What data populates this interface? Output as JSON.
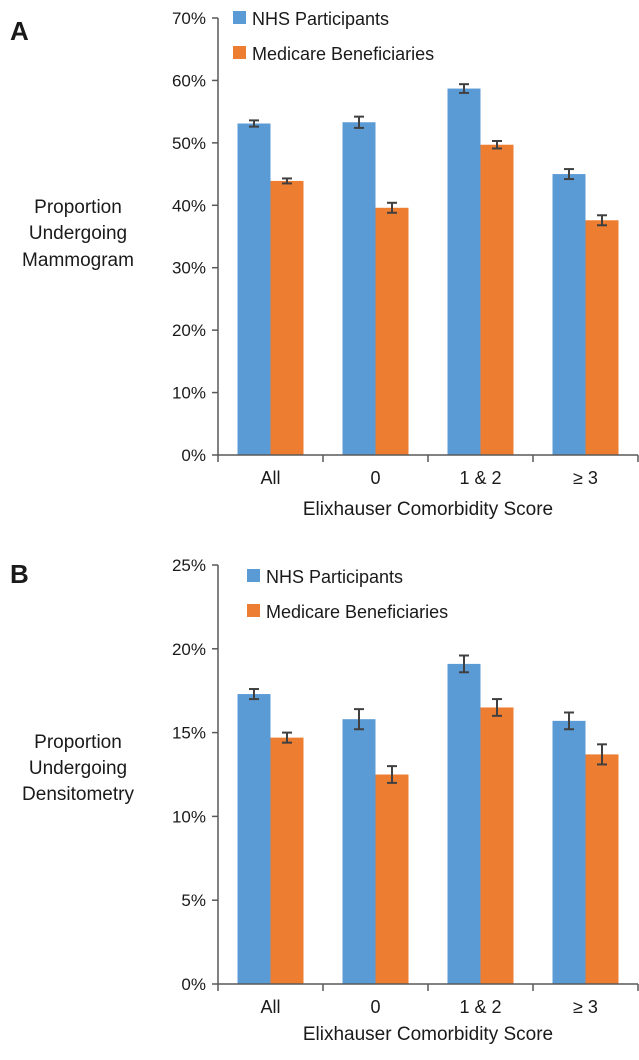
{
  "colors": {
    "nhs": "#5B9BD5",
    "medicare": "#ED7D31",
    "axis": "#595959",
    "error_bar": "#404040",
    "text": "#1a1a1a"
  },
  "chart_data": [
    {
      "type": "bar",
      "panel_label": "A",
      "title": "",
      "xlabel": "Elixhauser Comorbidity Score",
      "ylabel": [
        "Proportion",
        "Undergoing",
        "Mammogram"
      ],
      "categories": [
        "All",
        "0",
        "1 & 2",
        "≥ 3"
      ],
      "ylim": [
        0,
        70
      ],
      "yticks": [
        0,
        10,
        20,
        30,
        40,
        50,
        60,
        70
      ],
      "ytick_labels": [
        "0%",
        "10%",
        "20%",
        "30%",
        "40%",
        "50%",
        "60%",
        "70%"
      ],
      "grid": false,
      "legend_position": "top-left",
      "series": [
        {
          "name": "NHS Participants",
          "color_key": "nhs",
          "values": [
            53.1,
            53.3,
            58.7,
            45.0
          ],
          "error": [
            0.5,
            0.9,
            0.7,
            0.8
          ]
        },
        {
          "name": "Medicare Beneficiaries",
          "color_key": "medicare",
          "values": [
            43.9,
            39.6,
            49.7,
            37.6
          ],
          "error": [
            0.4,
            0.8,
            0.6,
            0.8
          ]
        }
      ]
    },
    {
      "type": "bar",
      "panel_label": "B",
      "title": "",
      "xlabel": "Elixhauser Comorbidity Score",
      "ylabel": [
        "Proportion",
        "Undergoing",
        "Densitometry"
      ],
      "categories": [
        "All",
        "0",
        "1 & 2",
        "≥ 3"
      ],
      "ylim": [
        0,
        25
      ],
      "yticks": [
        0,
        5,
        10,
        15,
        20,
        25
      ],
      "ytick_labels": [
        "0%",
        "5%",
        "10%",
        "15%",
        "20%",
        "25%"
      ],
      "grid": false,
      "legend_position": "top-left",
      "series": [
        {
          "name": "NHS Participants",
          "color_key": "nhs",
          "values": [
            17.3,
            15.8,
            19.1,
            15.7
          ],
          "error": [
            0.3,
            0.6,
            0.5,
            0.5
          ]
        },
        {
          "name": "Medicare Beneficiaries",
          "color_key": "medicare",
          "values": [
            14.7,
            12.5,
            16.5,
            13.7
          ],
          "error": [
            0.3,
            0.5,
            0.5,
            0.6
          ]
        }
      ]
    }
  ]
}
